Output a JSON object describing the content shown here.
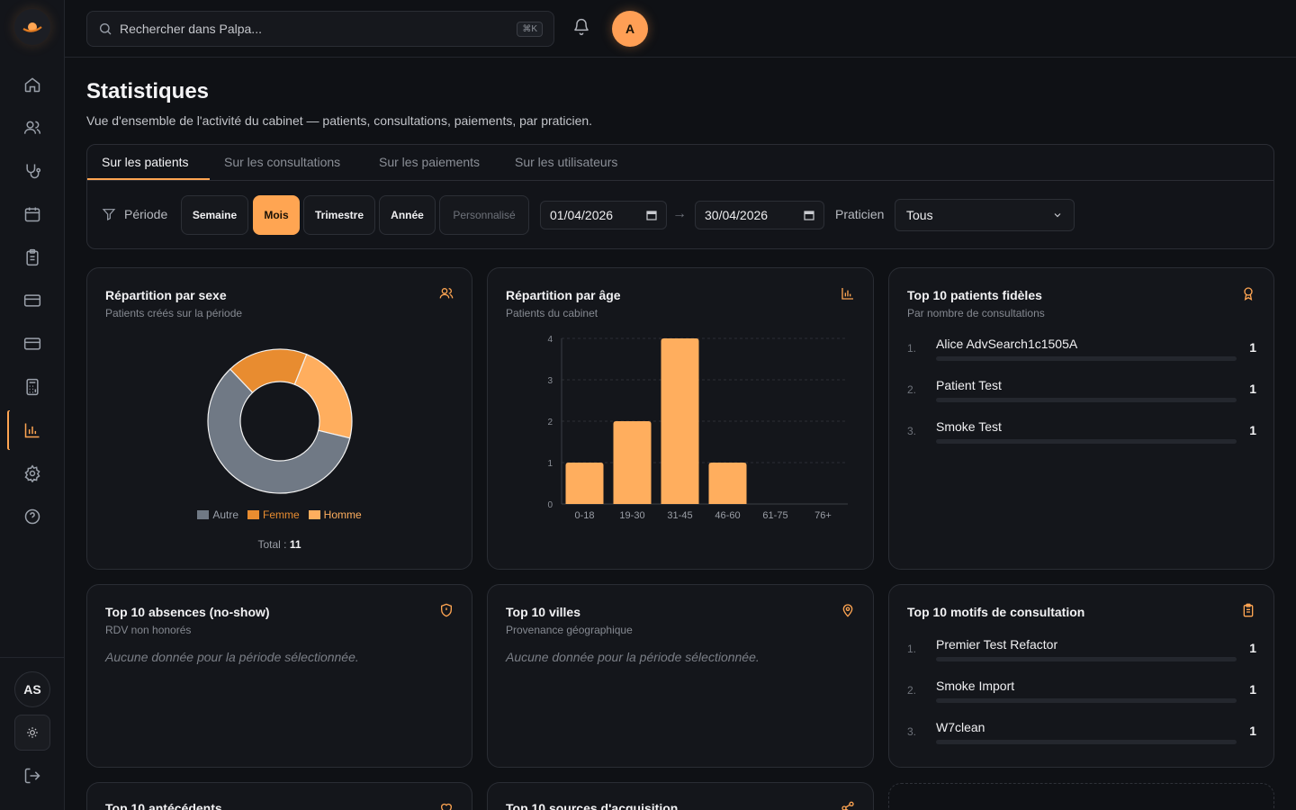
{
  "search": {
    "placeholder": "Rechercher dans Palpa...",
    "shortcut": "⌘K"
  },
  "user": {
    "avatar_letter": "A",
    "initials": "AS"
  },
  "page": {
    "title": "Statistiques",
    "subtitle": "Vue d'ensemble de l'activité du cabinet — patients, consultations, paiements, par praticien."
  },
  "tabs": [
    {
      "label": "Sur les patients",
      "active": true
    },
    {
      "label": "Sur les consultations",
      "active": false
    },
    {
      "label": "Sur les paiements",
      "active": false
    },
    {
      "label": "Sur les utilisateurs",
      "active": false
    }
  ],
  "filters": {
    "period_label": "Période",
    "periods": [
      "Semaine",
      "Mois",
      "Trimestre",
      "Année",
      "Personnalisé"
    ],
    "active_period": "Mois",
    "date_from": "01/04/2026",
    "arrow": "→",
    "date_to": "30/04/2026",
    "practitioner_label": "Praticien",
    "practitioner_value": "Tous"
  },
  "colors": {
    "accent": "#ffa552",
    "autre": "#707985",
    "femme": "#e88c30",
    "homme": "#ffae5e"
  },
  "cards": {
    "sexe": {
      "title": "Répartition par sexe",
      "subtitle": "Patients créés sur la période",
      "icon": "users-icon",
      "total_label": "Total :",
      "total_value": "11"
    },
    "age": {
      "title": "Répartition par âge",
      "subtitle": "Patients du cabinet",
      "icon": "bar-chart-icon"
    },
    "fideles": {
      "title": "Top 10 patients fidèles",
      "subtitle": "Par nombre de consultations",
      "icon": "award-icon",
      "items": [
        {
          "rank": "1.",
          "name": "Alice AdvSearch1c1505A",
          "value": "1"
        },
        {
          "rank": "2.",
          "name": "Patient Test",
          "value": "1"
        },
        {
          "rank": "3.",
          "name": "Smoke Test",
          "value": "1"
        }
      ]
    },
    "absences": {
      "title": "Top 10 absences (no-show)",
      "subtitle": "RDV non honorés",
      "icon": "shield-alert-icon",
      "empty": "Aucune donnée pour la période sélectionnée."
    },
    "villes": {
      "title": "Top 10 villes",
      "subtitle": "Provenance géographique",
      "icon": "map-pin-icon",
      "empty": "Aucune donnée pour la période sélectionnée."
    },
    "motifs": {
      "title": "Top 10 motifs de consultation",
      "icon": "clipboard-icon",
      "items": [
        {
          "rank": "1.",
          "name": "Premier Test Refactor",
          "value": "1"
        },
        {
          "rank": "2.",
          "name": "Smoke Import",
          "value": "1"
        },
        {
          "rank": "3.",
          "name": "W7clean",
          "value": "1"
        }
      ]
    },
    "antecedents": {
      "title": "Top 10 antécédents",
      "icon": "heart-icon"
    },
    "sources": {
      "title": "Top 10 sources d'acquisition",
      "icon": "share-icon"
    }
  },
  "chart_data": [
    {
      "type": "pie",
      "donut": true,
      "categories": [
        "Autre",
        "Femme",
        "Homme"
      ],
      "values": [
        6.5,
        2,
        2.5
      ],
      "total": 11,
      "legend": "bottom"
    },
    {
      "type": "bar",
      "categories": [
        "0-18",
        "19-30",
        "31-45",
        "46-60",
        "61-75",
        "76+"
      ],
      "values": [
        1,
        2,
        4,
        1,
        0,
        0
      ],
      "ylim": [
        0,
        4
      ],
      "yticks": [
        "0",
        "1",
        "2",
        "3",
        "4"
      ],
      "grid": true
    }
  ]
}
